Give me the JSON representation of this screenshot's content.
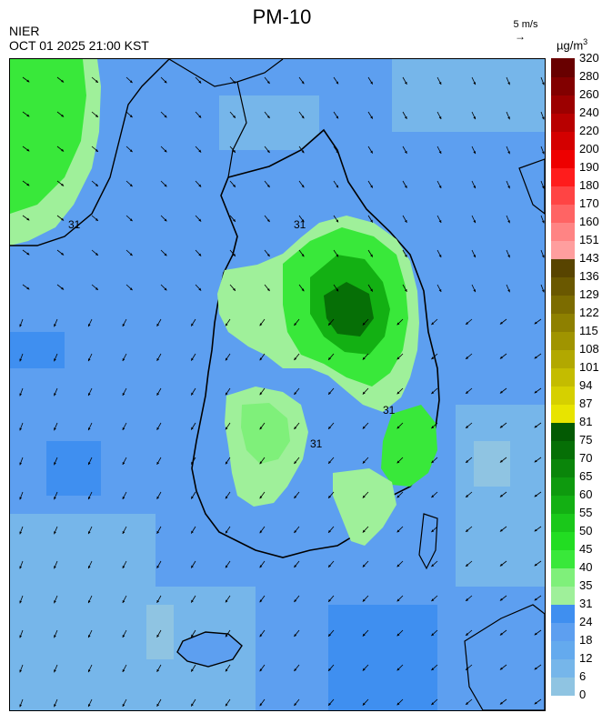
{
  "header": {
    "title": "PM-10",
    "agency": "NIER",
    "timestamp": "OCT 01 2025 21:00 KST",
    "wind_reference": "5 m/s",
    "wind_reference_arrow": "→",
    "unit": "µg/m",
    "unit_sup": "3"
  },
  "legend": {
    "labels": [
      "0",
      "6",
      "12",
      "18",
      "24",
      "31",
      "35",
      "40",
      "45",
      "50",
      "55",
      "60",
      "65",
      "70",
      "75",
      "81",
      "87",
      "94",
      "101",
      "108",
      "115",
      "122",
      "129",
      "136",
      "143",
      "151",
      "160",
      "170",
      "180",
      "190",
      "200",
      "220",
      "240",
      "260",
      "280",
      "320"
    ],
    "colors": [
      "#8fc4e2",
      "#76b6ea",
      "#64aaee",
      "#5d9ff0",
      "#3f8ff0",
      "#9ff09a",
      "#7ff07a",
      "#39e83a",
      "#22dd22",
      "#1ac81a",
      "#13b013",
      "#0e9a0e",
      "#0a850a",
      "#066f06",
      "#035a03",
      "#e8e400",
      "#d6d000",
      "#c4bc00",
      "#b2a800",
      "#a09400",
      "#8e8000",
      "#7c6c00",
      "#6a5800",
      "#584400",
      "#ff9e9e",
      "#ff8484",
      "#ff6464",
      "#ff4444",
      "#ff1c1c",
      "#ee0000",
      "#d40000",
      "#b80000",
      "#9c0000",
      "#820000",
      "#680000"
    ]
  },
  "map": {
    "contour_labels": [
      "31",
      "31",
      "31",
      "31"
    ],
    "background_color": "#5d9ff0",
    "land_outline_color": "#000000",
    "wind_arrow_color": "#000000"
  }
}
